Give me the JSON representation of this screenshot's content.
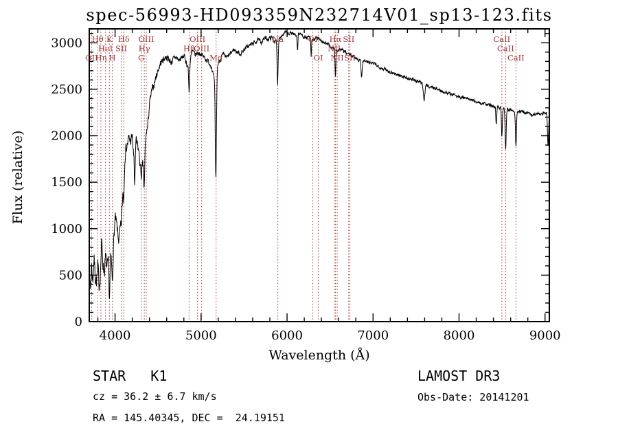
{
  "annotations": {
    "object_class": "STAR   K1",
    "survey": "LAMOST DR3",
    "cz": "cz = 36.2 ± 6.7 km/s",
    "obs_date": "Obs-Date: 20141201",
    "ra_dec": "RA = 145.40345, DEC =  24.19151"
  },
  "chart_data": {
    "type": "line",
    "title": "spec-56993-HD093359N232714V01_sp13-123.fits",
    "xlabel": "Wavelength (Å)",
    "ylabel": "Flux (relative)",
    "xlim": [
      3700,
      9050
    ],
    "ylim": [
      0,
      3150
    ],
    "xticks": [
      4000,
      5000,
      6000,
      7000,
      8000,
      9000
    ],
    "x_minor_step": 200,
    "yticks": [
      0,
      500,
      1000,
      1500,
      2000,
      2500,
      3000
    ],
    "y_minor_step": 100,
    "grid": false,
    "legend": "none",
    "line_color": "#000000",
    "feature_color": "#9e3434",
    "spectral_lines": [
      {
        "wavelength": 3727,
        "label": "OII",
        "row": 3
      },
      {
        "wavelength": 3798,
        "label": "Hθ",
        "row": 1
      },
      {
        "wavelength": 3835,
        "label": "Hη",
        "row": 3
      },
      {
        "wavelength": 3889,
        "label": "HeI",
        "row": 2
      },
      {
        "wavelength": 3934,
        "label": "K",
        "row": 1
      },
      {
        "wavelength": 3969,
        "label": "H",
        "row": 3
      },
      {
        "wavelength": 4072,
        "label": "SII",
        "row": 2
      },
      {
        "wavelength": 4102,
        "label": "Hδ",
        "row": 1
      },
      {
        "wavelength": 4305,
        "label": "G",
        "row": 3
      },
      {
        "wavelength": 4340,
        "label": "Hγ",
        "row": 2
      },
      {
        "wavelength": 4363,
        "label": "OIII",
        "row": 1
      },
      {
        "wavelength": 4861,
        "label": "Hβ",
        "row": 2
      },
      {
        "wavelength": 4959,
        "label": "OIII",
        "row": 1
      },
      {
        "wavelength": 5007,
        "label": "OIII",
        "row": 2
      },
      {
        "wavelength": 5175,
        "label": "Mg",
        "row": 3
      },
      {
        "wavelength": 5893,
        "label": "Na",
        "row": 1
      },
      {
        "wavelength": 6300,
        "label": "OI",
        "row": 1
      },
      {
        "wavelength": 6364,
        "label": "OI",
        "row": 3
      },
      {
        "wavelength": 6548,
        "label": "NII",
        "row": 2
      },
      {
        "wavelength": 6563,
        "label": "Hα",
        "row": 1
      },
      {
        "wavelength": 6583,
        "label": "NII",
        "row": 3
      },
      {
        "wavelength": 6717,
        "label": "SII",
        "row": 1
      },
      {
        "wavelength": 6731,
        "label": "SII",
        "row": 3
      },
      {
        "wavelength": 8498,
        "label": "CaII",
        "row": 1
      },
      {
        "wavelength": 8542,
        "label": "CaII",
        "row": 2
      },
      {
        "wavelength": 8662,
        "label": "CaII",
        "row": 3
      }
    ],
    "continuum": [
      [
        3700,
        520
      ],
      [
        3712,
        330
      ],
      [
        3725,
        620
      ],
      [
        3740,
        430
      ],
      [
        3755,
        690
      ],
      [
        3770,
        500
      ],
      [
        3785,
        430
      ],
      [
        3800,
        590
      ],
      [
        3815,
        380
      ],
      [
        3830,
        550
      ],
      [
        3845,
        860
      ],
      [
        3860,
        620
      ],
      [
        3875,
        540
      ],
      [
        3890,
        690
      ],
      [
        3905,
        560
      ],
      [
        3920,
        620
      ],
      [
        3935,
        500
      ],
      [
        3950,
        670
      ],
      [
        3965,
        620
      ],
      [
        3980,
        790
      ],
      [
        4000,
        1110
      ],
      [
        4015,
        1050
      ],
      [
        4030,
        950
      ],
      [
        4045,
        870
      ],
      [
        4060,
        980
      ],
      [
        4075,
        1060
      ],
      [
        4090,
        1390
      ],
      [
        4105,
        1690
      ],
      [
        4120,
        1840
      ],
      [
        4140,
        1900
      ],
      [
        4160,
        1970
      ],
      [
        4180,
        1940
      ],
      [
        4200,
        1990
      ],
      [
        4215,
        1800
      ],
      [
        4230,
        1680
      ],
      [
        4245,
        1940
      ],
      [
        4260,
        1890
      ],
      [
        4275,
        1840
      ],
      [
        4290,
        1700
      ],
      [
        4305,
        1570
      ],
      [
        4320,
        1680
      ],
      [
        4335,
        1620
      ],
      [
        4350,
        1890
      ],
      [
        4365,
        2040
      ],
      [
        4380,
        2100
      ],
      [
        4400,
        2340
      ],
      [
        4425,
        2470
      ],
      [
        4450,
        2550
      ],
      [
        4475,
        2630
      ],
      [
        4500,
        2710
      ],
      [
        4530,
        2780
      ],
      [
        4560,
        2820
      ],
      [
        4590,
        2850
      ],
      [
        4620,
        2830
      ],
      [
        4650,
        2790
      ],
      [
        4680,
        2820
      ],
      [
        4710,
        2850
      ],
      [
        4740,
        2810
      ],
      [
        4770,
        2830
      ],
      [
        4800,
        2860
      ],
      [
        4830,
        2790
      ],
      [
        4861,
        2700
      ],
      [
        4880,
        2840
      ],
      [
        4900,
        2910
      ],
      [
        4930,
        2870
      ],
      [
        4960,
        2890
      ],
      [
        5000,
        2880
      ],
      [
        5030,
        2850
      ],
      [
        5060,
        2820
      ],
      [
        5090,
        2790
      ],
      [
        5120,
        2750
      ],
      [
        5150,
        2620
      ],
      [
        5200,
        2780
      ],
      [
        5230,
        2840
      ],
      [
        5260,
        2870
      ],
      [
        5300,
        2840
      ],
      [
        5340,
        2880
      ],
      [
        5380,
        2930
      ],
      [
        5420,
        2900
      ],
      [
        5460,
        2880
      ],
      [
        5500,
        2930
      ],
      [
        5540,
        2960
      ],
      [
        5580,
        2980
      ],
      [
        5620,
        3000
      ],
      [
        5660,
        3030
      ],
      [
        5700,
        3010
      ],
      [
        5740,
        3050
      ],
      [
        5780,
        3040
      ],
      [
        5820,
        3060
      ],
      [
        5860,
        3010
      ],
      [
        5900,
        3050
      ],
      [
        5940,
        3080
      ],
      [
        5980,
        3110
      ],
      [
        6020,
        3090
      ],
      [
        6060,
        3110
      ],
      [
        6100,
        3080
      ],
      [
        6140,
        3100
      ],
      [
        6180,
        3080
      ],
      [
        6220,
        3050
      ],
      [
        6260,
        3060
      ],
      [
        6300,
        3030
      ],
      [
        6340,
        3050
      ],
      [
        6380,
        3040
      ],
      [
        6420,
        3010
      ],
      [
        6460,
        2990
      ],
      [
        6500,
        2960
      ],
      [
        6540,
        2940
      ],
      [
        6580,
        2920
      ],
      [
        6620,
        2930
      ],
      [
        6660,
        2910
      ],
      [
        6700,
        2880
      ],
      [
        6740,
        2870
      ],
      [
        6780,
        2850
      ],
      [
        6820,
        2830
      ],
      [
        6860,
        2800
      ],
      [
        6900,
        2810
      ],
      [
        6940,
        2790
      ],
      [
        6980,
        2780
      ],
      [
        7020,
        2770
      ],
      [
        7060,
        2750
      ],
      [
        7100,
        2730
      ],
      [
        7150,
        2710
      ],
      [
        7200,
        2690
      ],
      [
        7250,
        2670
      ],
      [
        7300,
        2650
      ],
      [
        7350,
        2640
      ],
      [
        7400,
        2620
      ],
      [
        7450,
        2610
      ],
      [
        7500,
        2590
      ],
      [
        7550,
        2570
      ],
      [
        7600,
        2550
      ],
      [
        7650,
        2530
      ],
      [
        7700,
        2520
      ],
      [
        7750,
        2500
      ],
      [
        7800,
        2480
      ],
      [
        7850,
        2470
      ],
      [
        7900,
        2450
      ],
      [
        7950,
        2440
      ],
      [
        8000,
        2420
      ],
      [
        8050,
        2410
      ],
      [
        8100,
        2400
      ],
      [
        8150,
        2380
      ],
      [
        8200,
        2370
      ],
      [
        8250,
        2350
      ],
      [
        8300,
        2340
      ],
      [
        8350,
        2330
      ],
      [
        8400,
        2320
      ],
      [
        8450,
        2310
      ],
      [
        8500,
        2300
      ],
      [
        8550,
        2290
      ],
      [
        8600,
        2280
      ],
      [
        8650,
        2270
      ],
      [
        8700,
        2260
      ],
      [
        8750,
        2250
      ],
      [
        8800,
        2240
      ],
      [
        8850,
        2230
      ],
      [
        8900,
        2230
      ],
      [
        8950,
        2240
      ],
      [
        9000,
        2250
      ],
      [
        9030,
        2230
      ],
      [
        9050,
        2220
      ]
    ],
    "absorption_dips": [
      {
        "center": 3934,
        "width": 5,
        "depth": 250
      },
      {
        "center": 3969,
        "width": 5,
        "depth": 230
      },
      {
        "center": 4102,
        "width": 5,
        "depth": 300
      },
      {
        "center": 4227,
        "width": 4,
        "depth": 220
      },
      {
        "center": 4340,
        "width": 5,
        "depth": 260
      },
      {
        "center": 4861,
        "width": 5,
        "depth": 230
      },
      {
        "center": 5172,
        "width": 7,
        "depth": 1150
      },
      {
        "center": 5890,
        "width": 6,
        "depth": 480
      },
      {
        "center": 6122,
        "width": 4,
        "depth": 180
      },
      {
        "center": 6280,
        "width": 4,
        "depth": 200
      },
      {
        "center": 6563,
        "width": 5,
        "depth": 280
      },
      {
        "center": 6867,
        "width": 6,
        "depth": 160
      },
      {
        "center": 7594,
        "width": 8,
        "depth": 170
      },
      {
        "center": 8433,
        "width": 5,
        "depth": 200
      },
      {
        "center": 8498,
        "width": 5,
        "depth": 320
      },
      {
        "center": 8542,
        "width": 6,
        "depth": 430
      },
      {
        "center": 8662,
        "width": 6,
        "depth": 380
      },
      {
        "center": 9035,
        "width": 6,
        "depth": 330
      }
    ],
    "noise_profile": [
      [
        3700,
        150
      ],
      [
        4050,
        110
      ],
      [
        4430,
        65
      ],
      [
        5000,
        40
      ],
      [
        6500,
        30
      ],
      [
        9050,
        28
      ]
    ],
    "noise_seed": 7
  }
}
